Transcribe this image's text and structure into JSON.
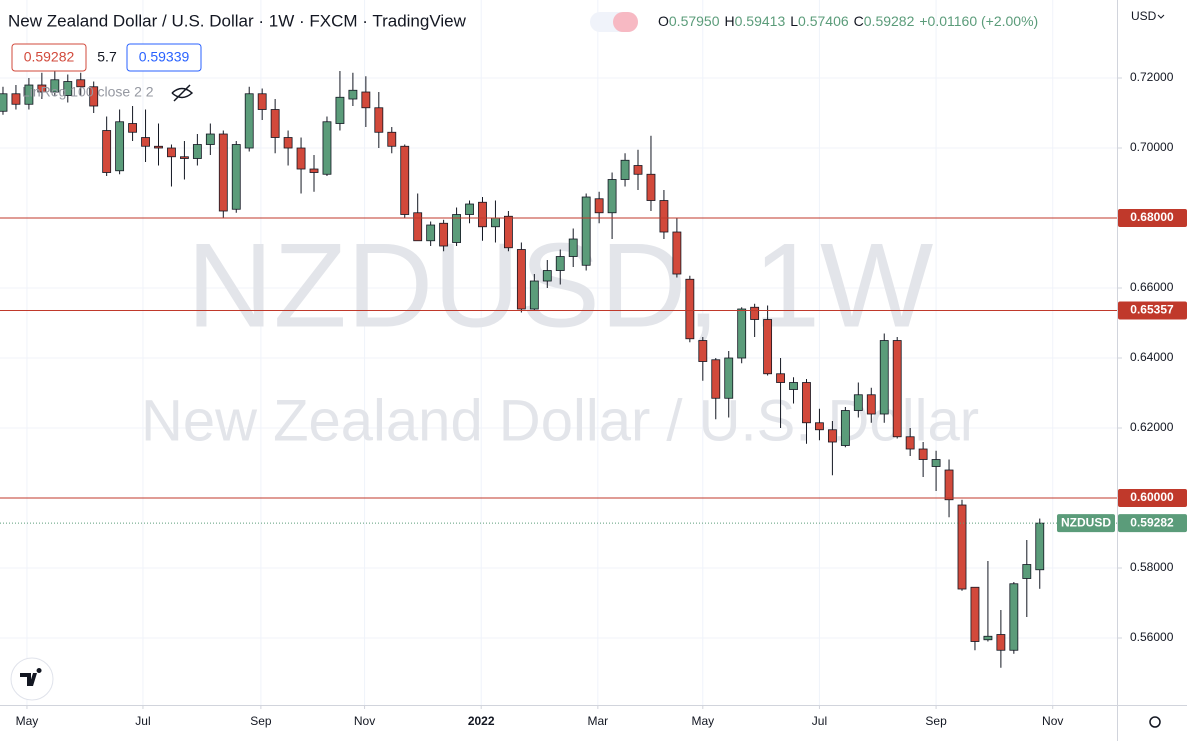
{
  "chart_data": {
    "type": "candlestick",
    "title": "New Zealand Dollar / U.S. Dollar · 1W · FXCM · TradingView",
    "ohlc_header": [
      {
        "label": "O",
        "value": "0.57950"
      },
      {
        "label": "H",
        "value": "0.59413"
      },
      {
        "label": "L",
        "value": "0.57406"
      },
      {
        "label": "C",
        "value": "0.59282"
      },
      {
        "label": "",
        "value": "+0.01160 (+2.00%)"
      }
    ],
    "price_boxes": [
      "0.59282",
      "5.7",
      "0.59339"
    ],
    "indicator": "LinReg 100 close 2 2",
    "watermark": [
      "NZDUSD, 1W",
      "New Zealand Dollar / U.S. Dollar"
    ],
    "currency": "USD",
    "up_color": "#5b9c7a",
    "down_color": "#d2493b",
    "open": [
      0.7105,
      0.7155,
      0.7125,
      0.718,
      0.716,
      0.715,
      0.7195,
      0.7175,
      0.705,
      0.6935,
      0.707,
      0.703,
      0.7005,
      0.7,
      0.6975,
      0.697,
      0.701,
      0.704,
      0.6825,
      0.7,
      0.7155,
      0.711,
      0.703,
      0.7,
      0.694,
      0.6925,
      0.707,
      0.714,
      0.716,
      0.7115,
      0.7045,
      0.7005,
      0.6815,
      0.6735,
      0.6785,
      0.673,
      0.681,
      0.6845,
      0.6775,
      0.6805,
      0.671,
      0.654,
      0.662,
      0.665,
      0.669,
      0.6665,
      0.6855,
      0.6815,
      0.691,
      0.695,
      0.6925,
      0.685,
      0.676,
      0.6625,
      0.645,
      0.6395,
      0.6285,
      0.64,
      0.6545,
      0.651,
      0.6355,
      0.631,
      0.633,
      0.6215,
      0.6195,
      0.615,
      0.625,
      0.6295,
      0.624,
      0.645,
      0.6175,
      0.614,
      0.609,
      0.608,
      0.598,
      0.5745,
      0.5595,
      0.561,
      0.5565,
      0.577,
      0.5795
    ],
    "high": [
      0.7175,
      0.718,
      0.72,
      0.7215,
      0.7225,
      0.721,
      0.7215,
      0.719,
      0.709,
      0.711,
      0.712,
      0.711,
      0.707,
      0.701,
      0.702,
      0.704,
      0.707,
      0.705,
      0.702,
      0.7175,
      0.717,
      0.714,
      0.705,
      0.703,
      0.698,
      0.709,
      0.722,
      0.7215,
      0.7205,
      0.716,
      0.706,
      0.701,
      0.687,
      0.679,
      0.6795,
      0.683,
      0.685,
      0.686,
      0.685,
      0.682,
      0.673,
      0.664,
      0.668,
      0.671,
      0.677,
      0.687,
      0.6875,
      0.693,
      0.6985,
      0.6995,
      0.7035,
      0.688,
      0.68,
      0.6635,
      0.646,
      0.64,
      0.642,
      0.6545,
      0.6555,
      0.655,
      0.64,
      0.6345,
      0.634,
      0.6255,
      0.622,
      0.626,
      0.633,
      0.6315,
      0.647,
      0.646,
      0.62,
      0.616,
      0.6135,
      0.611,
      0.5995,
      0.5745,
      0.582,
      0.568,
      0.576,
      0.588,
      0.59413
    ],
    "low": [
      0.7095,
      0.711,
      0.711,
      0.714,
      0.715,
      0.713,
      0.715,
      0.71,
      0.692,
      0.6925,
      0.702,
      0.696,
      0.695,
      0.689,
      0.691,
      0.695,
      0.698,
      0.68,
      0.6815,
      0.699,
      0.708,
      0.6985,
      0.695,
      0.687,
      0.6875,
      0.692,
      0.705,
      0.712,
      0.706,
      0.7,
      0.6985,
      0.68,
      0.6735,
      0.672,
      0.6705,
      0.672,
      0.6785,
      0.6735,
      0.673,
      0.6705,
      0.653,
      0.6535,
      0.66,
      0.661,
      0.666,
      0.665,
      0.6785,
      0.674,
      0.689,
      0.688,
      0.682,
      0.674,
      0.663,
      0.6445,
      0.6335,
      0.6225,
      0.623,
      0.6385,
      0.646,
      0.635,
      0.62,
      0.627,
      0.6155,
      0.6165,
      0.6065,
      0.6145,
      0.623,
      0.6215,
      0.6215,
      0.617,
      0.612,
      0.606,
      0.602,
      0.5945,
      0.5735,
      0.5565,
      0.559,
      0.5515,
      0.5555,
      0.566,
      0.57406
    ],
    "close": [
      0.7155,
      0.7125,
      0.718,
      0.716,
      0.7195,
      0.719,
      0.7175,
      0.712,
      0.693,
      0.7075,
      0.7045,
      0.7005,
      0.7,
      0.6975,
      0.697,
      0.701,
      0.704,
      0.682,
      0.701,
      0.7155,
      0.711,
      0.703,
      0.7,
      0.694,
      0.693,
      0.7075,
      0.7145,
      0.7165,
      0.7115,
      0.7045,
      0.7005,
      0.681,
      0.6735,
      0.678,
      0.672,
      0.681,
      0.684,
      0.6775,
      0.68,
      0.6715,
      0.654,
      0.662,
      0.665,
      0.669,
      0.674,
      0.686,
      0.6815,
      0.691,
      0.6965,
      0.6925,
      0.685,
      0.676,
      0.664,
      0.6455,
      0.639,
      0.6285,
      0.64,
      0.654,
      0.651,
      0.6355,
      0.633,
      0.633,
      0.6215,
      0.6195,
      0.616,
      0.625,
      0.6295,
      0.624,
      0.645,
      0.6175,
      0.614,
      0.611,
      0.611,
      0.5995,
      0.574,
      0.559,
      0.5605,
      0.5565,
      0.5755,
      0.581,
      0.59282
    ],
    "xlim": [
      -0.23,
      85.96
    ],
    "xticks": [
      {
        "value": 1.85,
        "label": "May"
      },
      {
        "value": 10.8,
        "label": "Jul"
      },
      {
        "value": 19.9,
        "label": "Sep"
      },
      {
        "value": 27.9,
        "label": "Nov"
      },
      {
        "value": 36.9,
        "label": "2022"
      },
      {
        "value": 45.9,
        "label": "Mar"
      },
      {
        "value": 54.0,
        "label": "May"
      },
      {
        "value": 63.0,
        "label": "Jul"
      },
      {
        "value": 72.0,
        "label": "Sep"
      },
      {
        "value": 81.0,
        "label": "Nov"
      }
    ],
    "ylim": [
      0.54086,
      0.74229
    ],
    "yticks": [
      {
        "value": 0.56,
        "label": "0.56000"
      },
      {
        "value": 0.58,
        "label": "0.58000"
      },
      {
        "value": 0.6,
        "label": "0.60000"
      },
      {
        "value": 0.62,
        "label": "0.62000"
      },
      {
        "value": 0.64,
        "label": "0.64000"
      },
      {
        "value": 0.66,
        "label": "0.66000"
      },
      {
        "value": 0.68,
        "label": "0.68000"
      },
      {
        "value": 0.7,
        "label": "0.70000"
      },
      {
        "value": 0.72,
        "label": "0.72000"
      }
    ],
    "hlines": [
      {
        "value": 0.68,
        "label": "0.68000"
      },
      {
        "value": 0.65357,
        "label": "0.65357"
      },
      {
        "value": 0.6,
        "label": "0.60000"
      }
    ],
    "hline_color": "#c0392b",
    "last_price": {
      "name": "NZDUSD",
      "value": 0.59282,
      "label": "0.59282"
    },
    "grid": true
  }
}
